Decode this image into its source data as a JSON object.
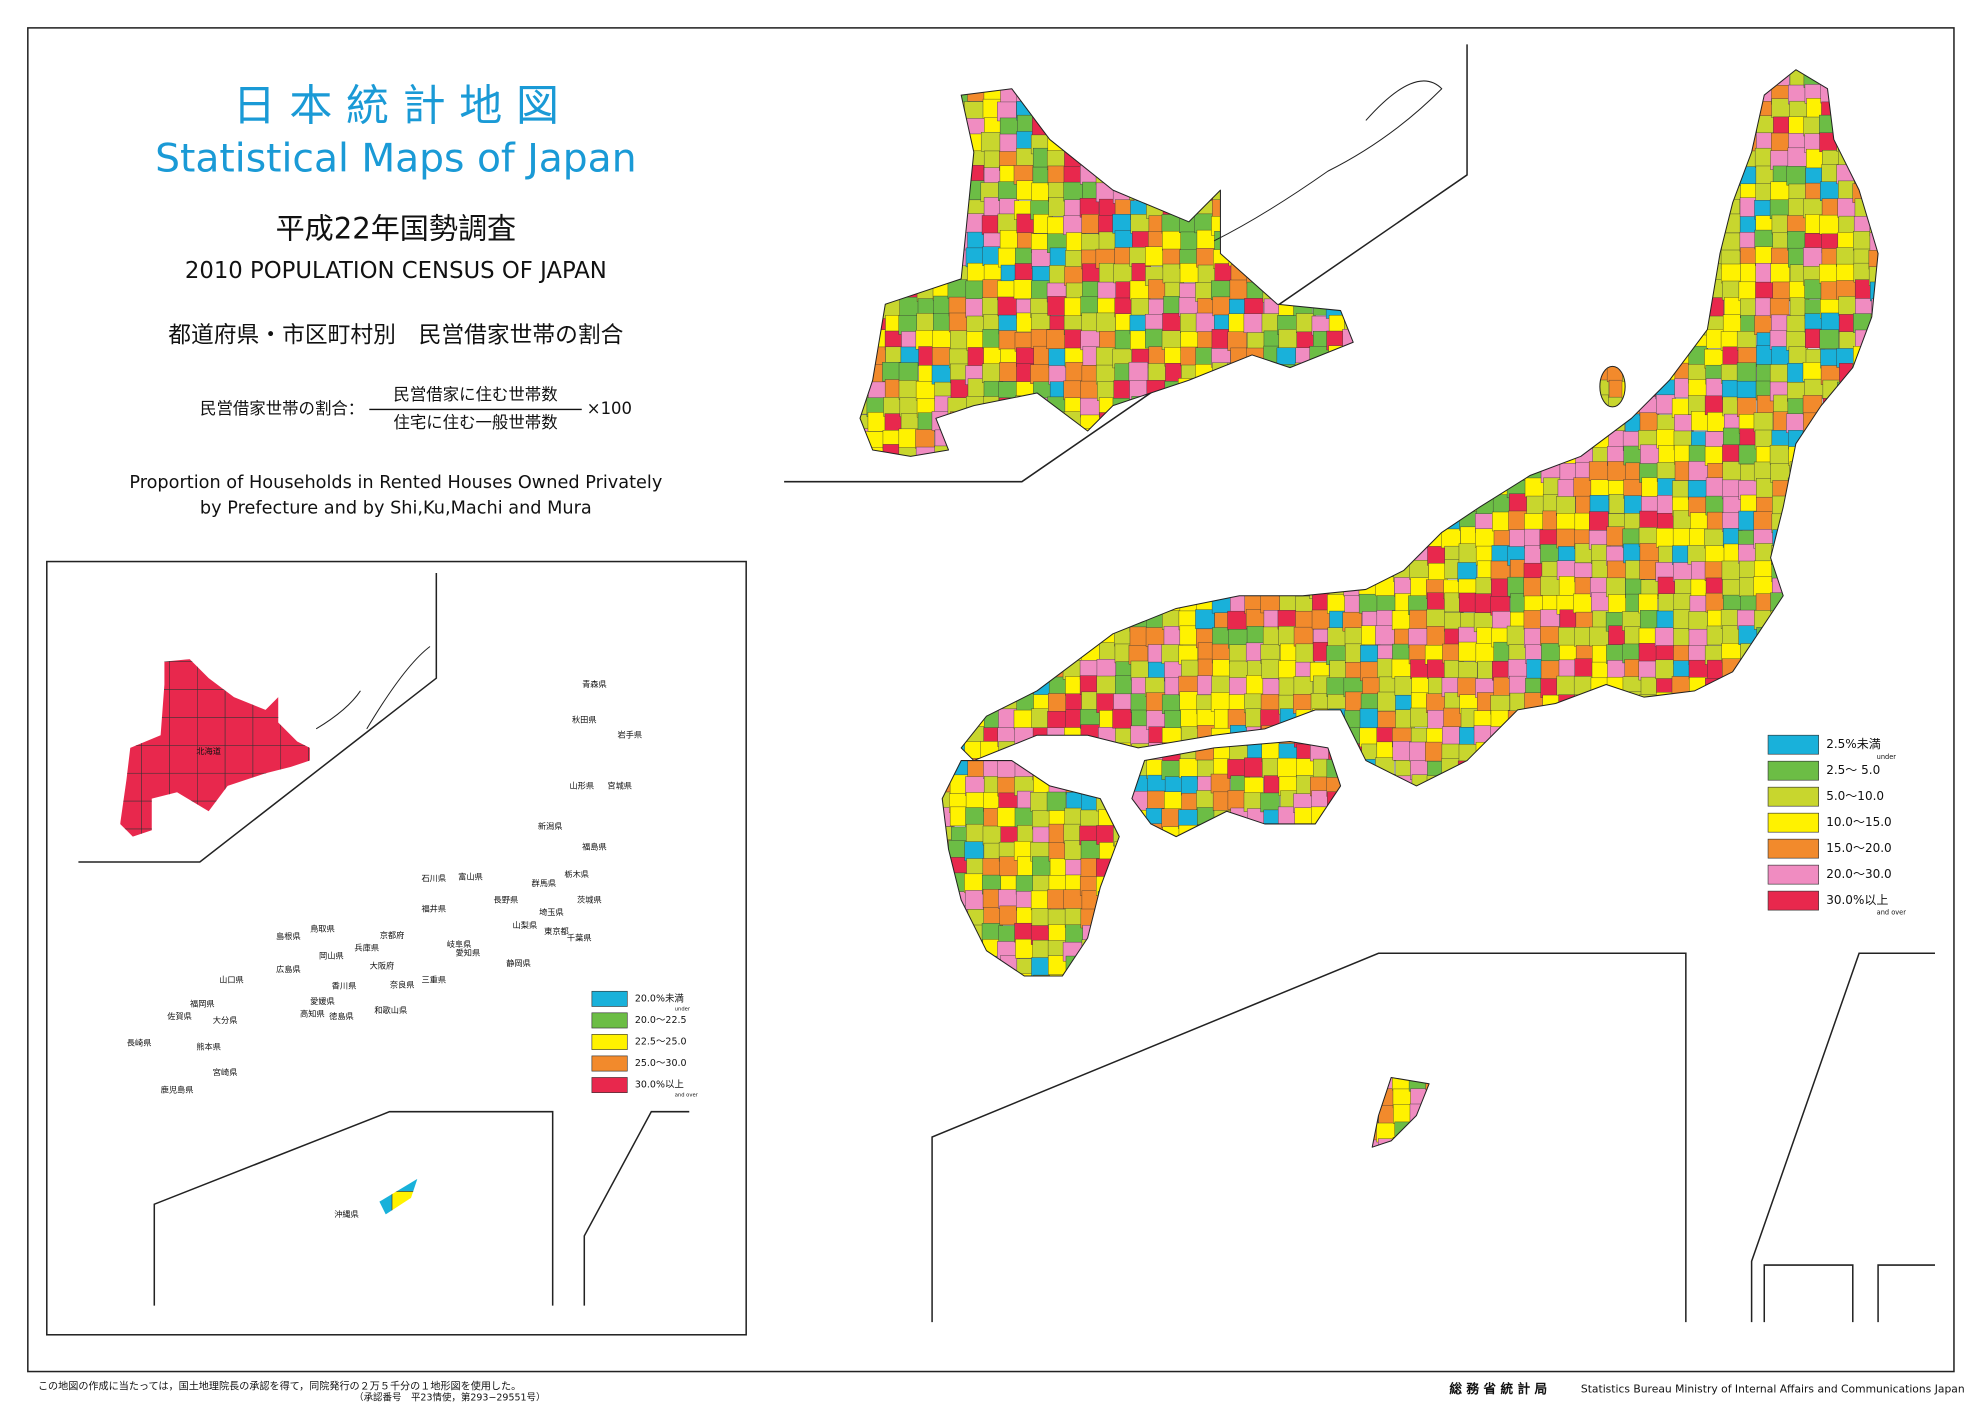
{
  "header": {
    "title_ja": "日 本 統 計 地 図",
    "title_en": "Statistical Maps of Japan",
    "census_ja": "平成22年国勢調査",
    "census_en": "2010 POPULATION CENSUS OF JAPAN",
    "subject_ja": "都道府県・市区町村別　民営借家世帯の割合",
    "formula": {
      "label": "民営借家世帯の割合：",
      "numerator": "民営借家に住む世帯数",
      "denominator": "住宅に住む一般世帯数",
      "multiplier": "×100"
    },
    "subject_en": [
      "Proportion of Households in Rented Houses Owned Privately",
      "by Prefecture and by Shi,Ku,Machi and Mura"
    ]
  },
  "prefecture_legend": [
    {
      "label": "20.0%未満",
      "note": "under",
      "color": "#19b1da"
    },
    {
      "label": "20.0～22.5",
      "color": "#6cbd45"
    },
    {
      "label": "22.5～25.0",
      "color": "#fff200"
    },
    {
      "label": "25.0～30.0",
      "color": "#f28a2c"
    },
    {
      "label": "30.0%以上",
      "note": "and over",
      "color": "#e8284d"
    }
  ],
  "municipal_legend": [
    {
      "label": "2.5%未満",
      "note": "under",
      "color": "#19b1da"
    },
    {
      "label": "2.5～ 5.0",
      "color": "#6cbd45"
    },
    {
      "label": "5.0～10.0",
      "color": "#c8d62e"
    },
    {
      "label": "10.0～15.0",
      "color": "#fff200"
    },
    {
      "label": "15.0～20.0",
      "color": "#f28a2c"
    },
    {
      "label": "20.0～30.0",
      "color": "#f08cc1"
    },
    {
      "label": "30.0%以上",
      "note": "and over",
      "color": "#e8284d"
    }
  ],
  "prefectures": [
    "北海道",
    "青森県",
    "秋田県",
    "岩手県",
    "山形県",
    "宮城県",
    "新潟県",
    "福島県",
    "石川県",
    "富山県",
    "群馬県",
    "栃木県",
    "長野県",
    "茨城県",
    "福井県",
    "岐阜県",
    "埼玉県",
    "山梨県",
    "東京都",
    "千葉県",
    "京都府",
    "島根県",
    "鳥取県",
    "兵庫県",
    "愛知県",
    "静岡県",
    "岡山県",
    "山口県",
    "広島県",
    "大阪府",
    "奈良県",
    "三重県",
    "愛媛県",
    "香川県",
    "徳島県",
    "高知県",
    "和歌山県",
    "福岡県",
    "佐賀県",
    "大分県",
    "長崎県",
    "熊本県",
    "宮崎県",
    "鹿児島県",
    "沖縄県"
  ],
  "footer": {
    "note": "この地図の作成に当たっては，国土地理院長の承認を得て，同院発行の２万５千分の１地形図を使用した。",
    "approval": "（承認番号　平23情使，第293−29551号）",
    "bureau_ja": "総 務 省 統 計 局",
    "bureau_en": "Statistics Bureau Ministry of Internal Affairs and Communications Japan"
  }
}
